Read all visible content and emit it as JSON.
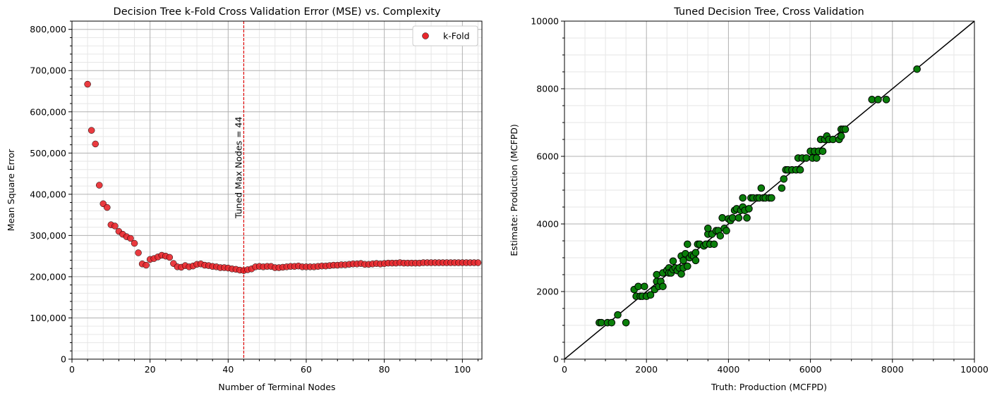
{
  "chart_data": [
    {
      "type": "scatter",
      "title": "Decision Tree k-Fold Cross Validation Error (MSE) vs. Complexity",
      "xlabel": "Number of Terminal Nodes",
      "ylabel": "Mean Square Error",
      "xlim": [
        0,
        105
      ],
      "ylim": [
        0,
        820000
      ],
      "x_ticks": [
        "0",
        "20",
        "40",
        "60",
        "80",
        "100"
      ],
      "y_ticks": [
        "0",
        "100,000",
        "200,000",
        "300,000",
        "400,000",
        "500,000",
        "600,000",
        "700,000",
        "800,000"
      ],
      "grid": true,
      "legend_position": "top-right",
      "colors": {
        "points": "#e8262b",
        "edge": "#000000",
        "vline": "#e00000"
      },
      "annotation": {
        "text": "Tuned Max Nodes = 44",
        "x": 44
      },
      "series": [
        {
          "name": "k-Fold",
          "x": [
            4,
            5,
            6,
            7,
            8,
            9,
            10,
            11,
            12,
            13,
            14,
            15,
            16,
            17,
            18,
            19,
            20,
            21,
            22,
            23,
            24,
            25,
            26,
            27,
            28,
            29,
            30,
            31,
            32,
            33,
            34,
            35,
            36,
            37,
            38,
            39,
            40,
            41,
            42,
            43,
            44,
            45,
            46,
            47,
            48,
            49,
            50,
            51,
            52,
            53,
            54,
            55,
            56,
            57,
            58,
            59,
            60,
            61,
            62,
            63,
            64,
            65,
            66,
            67,
            68,
            69,
            70,
            71,
            72,
            73,
            74,
            75,
            76,
            77,
            78,
            79,
            80,
            81,
            82,
            83,
            84,
            85,
            86,
            87,
            88,
            89,
            90,
            91,
            92,
            93,
            94,
            95,
            96,
            97,
            98,
            99,
            100,
            101,
            102,
            103,
            104
          ],
          "y": [
            667000,
            555000,
            522000,
            422000,
            377000,
            368000,
            326000,
            323000,
            310000,
            303000,
            297000,
            293000,
            281000,
            258000,
            231000,
            228000,
            242000,
            244000,
            248000,
            252000,
            250000,
            247000,
            232000,
            224000,
            223000,
            227000,
            224000,
            226000,
            230000,
            231000,
            228000,
            227000,
            225000,
            224000,
            222000,
            222000,
            221000,
            219000,
            218000,
            216000,
            215000,
            217000,
            219000,
            224000,
            225000,
            224000,
            225000,
            225000,
            222000,
            222000,
            223000,
            224000,
            225000,
            225000,
            226000,
            224000,
            224000,
            224000,
            224000,
            225000,
            226000,
            226000,
            227000,
            228000,
            228000,
            229000,
            229000,
            230000,
            231000,
            231000,
            232000,
            230000,
            230000,
            231000,
            232000,
            231000,
            232000,
            233000,
            233000,
            233000,
            234000,
            233000,
            233000,
            233000,
            233000,
            233000,
            234000,
            234000,
            234000,
            234000,
            234000,
            234000,
            234000,
            234000,
            234000,
            234000,
            234000,
            234000,
            234000,
            234000,
            234000
          ]
        }
      ]
    },
    {
      "type": "scatter",
      "title": "Tuned Decision Tree, Cross Validation",
      "xlabel": "Truth: Production (MCFPD)",
      "ylabel": "Estimate: Production (MCFPD)",
      "xlim": [
        0,
        10000
      ],
      "ylim": [
        0,
        10000
      ],
      "x_ticks": [
        "0",
        "2000",
        "4000",
        "6000",
        "8000",
        "10000"
      ],
      "y_ticks": [
        "0",
        "2000",
        "4000",
        "6000",
        "8000",
        "10000"
      ],
      "grid": true,
      "diagonal": true,
      "colors": {
        "points": "#0a7f0a",
        "edge": "#000000",
        "line": "#000000"
      },
      "points": [
        [
          850,
          1080
        ],
        [
          900,
          1080
        ],
        [
          1050,
          1080
        ],
        [
          1150,
          1080
        ],
        [
          1300,
          1310
        ],
        [
          1500,
          1080
        ],
        [
          1700,
          2060
        ],
        [
          1750,
          1860
        ],
        [
          1800,
          2150
        ],
        [
          1850,
          1860
        ],
        [
          1900,
          1860
        ],
        [
          2000,
          1860
        ],
        [
          1950,
          2150
        ],
        [
          2100,
          1900
        ],
        [
          2200,
          2060
        ],
        [
          2250,
          2300
        ],
        [
          2300,
          2150
        ],
        [
          2250,
          2500
        ],
        [
          2350,
          2300
        ],
        [
          2400,
          2150
        ],
        [
          2400,
          2550
        ],
        [
          2500,
          2630
        ],
        [
          2550,
          2700
        ],
        [
          2550,
          2550
        ],
        [
          2600,
          2550
        ],
        [
          2650,
          2900
        ],
        [
          2650,
          2650
        ],
        [
          2700,
          2700
        ],
        [
          2750,
          2620
        ],
        [
          2800,
          2700
        ],
        [
          2850,
          2520
        ],
        [
          2850,
          3050
        ],
        [
          2900,
          2920
        ],
        [
          2900,
          2700
        ],
        [
          2950,
          3120
        ],
        [
          3000,
          2750
        ],
        [
          3000,
          3400
        ],
        [
          3050,
          3000
        ],
        [
          3100,
          3080
        ],
        [
          3150,
          3050
        ],
        [
          3200,
          3150
        ],
        [
          3200,
          2920
        ],
        [
          3250,
          3400
        ],
        [
          3300,
          3400
        ],
        [
          3400,
          3350
        ],
        [
          3450,
          3400
        ],
        [
          3500,
          3700
        ],
        [
          3500,
          3870
        ],
        [
          3550,
          3400
        ],
        [
          3600,
          3700
        ],
        [
          3650,
          3400
        ],
        [
          3700,
          3800
        ],
        [
          3750,
          3800
        ],
        [
          3800,
          3650
        ],
        [
          3850,
          4180
        ],
        [
          3900,
          3870
        ],
        [
          3950,
          3800
        ],
        [
          4000,
          4150
        ],
        [
          4050,
          4100
        ],
        [
          4100,
          4180
        ],
        [
          4150,
          4400
        ],
        [
          4200,
          4450
        ],
        [
          4250,
          4180
        ],
        [
          4300,
          4400
        ],
        [
          4350,
          4500
        ],
        [
          4350,
          4770
        ],
        [
          4400,
          4400
        ],
        [
          4450,
          4180
        ],
        [
          4500,
          4450
        ],
        [
          4550,
          4770
        ],
        [
          4600,
          4770
        ],
        [
          4700,
          4770
        ],
        [
          4750,
          4770
        ],
        [
          4800,
          5060
        ],
        [
          4850,
          4770
        ],
        [
          4900,
          4770
        ],
        [
          5000,
          4770
        ],
        [
          5050,
          4770
        ],
        [
          5300,
          5060
        ],
        [
          5350,
          5330
        ],
        [
          5400,
          5600
        ],
        [
          5450,
          5600
        ],
        [
          5550,
          5600
        ],
        [
          5650,
          5600
        ],
        [
          5700,
          5950
        ],
        [
          5750,
          5600
        ],
        [
          5800,
          5950
        ],
        [
          5900,
          5950
        ],
        [
          6000,
          6150
        ],
        [
          6050,
          5950
        ],
        [
          6100,
          6150
        ],
        [
          6150,
          5950
        ],
        [
          6200,
          6150
        ],
        [
          6250,
          6500
        ],
        [
          6300,
          6150
        ],
        [
          6350,
          6500
        ],
        [
          6400,
          6600
        ],
        [
          6450,
          6500
        ],
        [
          6550,
          6500
        ],
        [
          6700,
          6500
        ],
        [
          6750,
          6600
        ],
        [
          6750,
          6800
        ],
        [
          6800,
          6800
        ],
        [
          6850,
          6800
        ],
        [
          7500,
          7680
        ],
        [
          7650,
          7680
        ],
        [
          7850,
          7680
        ],
        [
          8600,
          8580
        ]
      ]
    }
  ]
}
